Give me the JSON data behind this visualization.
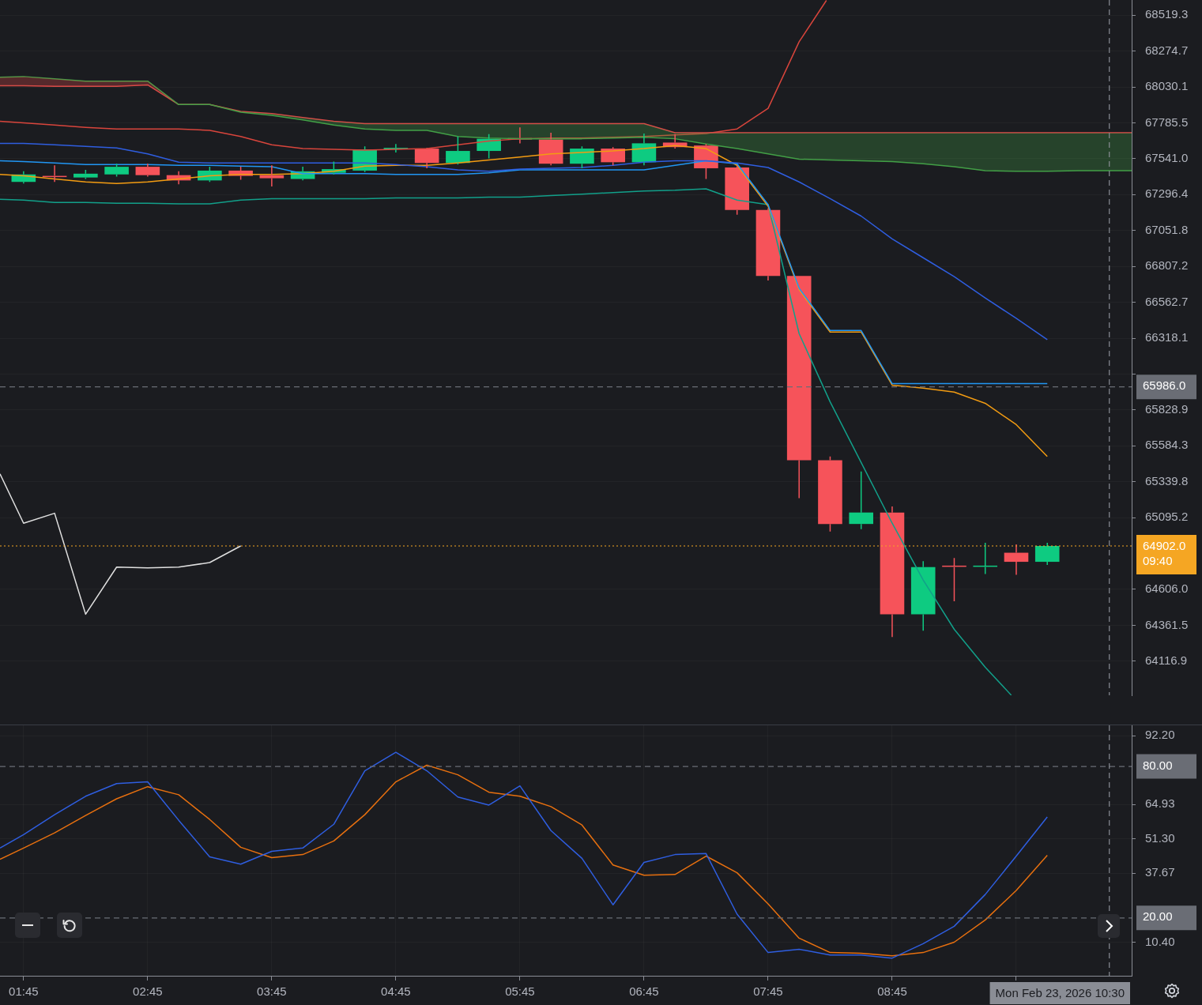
{
  "chart_data": [
    {
      "type": "candlestick",
      "tick_labels": "y",
      "grid": true,
      "xlim": [
        1.56,
        10.68
      ],
      "ylim": [
        63884.5,
        68622.6
      ],
      "yticks": [
        68519.3,
        68274.7,
        68030.1,
        67785.5,
        {
          "value": 67541.0,
          "label": "67541.0"
        },
        67296.4,
        67051.8,
        66807.2,
        66562.7,
        66318.1,
        {
          "value": 66073.5,
          "label": null
        },
        65828.9,
        65584.3,
        65339.8,
        65095.2,
        {
          "value": 64606.0,
          "label": "64606.0"
        },
        64361.5,
        64116.9
      ],
      "x": [
        1.75,
        2.0,
        2.25,
        2.5,
        2.75,
        3.0,
        3.25,
        3.5,
        3.75,
        4.0,
        4.25,
        4.5,
        4.75,
        5.0,
        5.25,
        5.5,
        5.75,
        6.0,
        6.25,
        6.5,
        6.75,
        7.0,
        7.25,
        7.5,
        7.75,
        8.0,
        8.25,
        8.5,
        8.75,
        9.0,
        9.25,
        9.5,
        9.75,
        10.0
      ],
      "ohlc": [
        [
          67383,
          67455,
          67372,
          67434
        ],
        [
          67424,
          67496,
          67383,
          67419
        ],
        [
          67413,
          67465,
          67403,
          67439
        ],
        [
          67434,
          67507,
          67419,
          67486
        ],
        [
          67486,
          67507,
          67419,
          67429
        ],
        [
          67429,
          67455,
          67367,
          67393
        ],
        [
          67393,
          67486,
          67383,
          67460
        ],
        [
          67460,
          67486,
          67398,
          67424
        ],
        [
          67429,
          67496,
          67352,
          67408
        ],
        [
          67403,
          67486,
          67393,
          67455
        ],
        [
          67445,
          67522,
          67434,
          67470
        ],
        [
          67460,
          67625,
          67450,
          67605
        ],
        [
          67605,
          67641,
          67584,
          67615
        ],
        [
          67610,
          67615,
          67476,
          67512
        ],
        [
          67512,
          67693,
          67501,
          67594
        ],
        [
          67594,
          67709,
          67543,
          67677
        ],
        [
          67682,
          67755,
          67646,
          67672
        ],
        [
          67672,
          67718,
          67496,
          67507
        ],
        [
          67507,
          67625,
          67476,
          67610
        ],
        [
          67610,
          67620,
          67496,
          67517
        ],
        [
          67517,
          67713,
          67496,
          67646
        ],
        [
          67651,
          67709,
          67610,
          67620
        ],
        [
          67631,
          67641,
          67403,
          67476
        ],
        [
          67481,
          67491,
          67160,
          67192
        ],
        [
          67192,
          67202,
          66711,
          66742
        ],
        [
          66742,
          66742,
          65228,
          65486
        ],
        [
          65486,
          65512,
          65000,
          65052
        ],
        [
          65052,
          65409,
          65016,
          65130
        ],
        [
          65130,
          65171,
          64282,
          64436
        ],
        [
          64436,
          64799,
          64324,
          64758
        ],
        [
          64768,
          64820,
          64525,
          64763
        ],
        [
          64763,
          64923,
          64711,
          64768
        ],
        [
          64856,
          64913,
          64706,
          64794
        ],
        [
          64794,
          64923,
          64773,
          64902
        ]
      ],
      "colors": [
        "#0ecb81",
        "#f6535a",
        "#0ecb81",
        "#0ecb81",
        "#f6535a",
        "#f6535a",
        "#0ecb81",
        "#f6535a",
        "#f6535a",
        "#0ecb81",
        "#0ecb81",
        "#0ecb81",
        "#0ecb81",
        "#f6535a",
        "#0ecb81",
        "#0ecb81",
        "#f6535a",
        "#f6535a",
        "#0ecb81",
        "#f6535a",
        "#0ecb81",
        "#f6535a",
        "#f6535a",
        "#f6535a",
        "#f6535a",
        "#f6535a",
        "#f6535a",
        "#0ecb81",
        "#f6535a",
        "#0ecb81",
        "#f6535a",
        "#0ecb81",
        "#f6535a",
        "#0ecb81"
      ],
      "series": [
        {
          "type": "line",
          "color": "#43a047",
          "x": [
            1.56,
            1.75,
            2.0,
            2.25,
            2.5,
            2.75,
            3.0,
            3.25,
            3.5,
            3.75,
            4.0,
            4.25,
            4.5,
            4.75,
            5.0,
            5.25,
            5.5,
            5.75,
            6.0,
            6.25,
            6.5,
            6.75,
            7.0,
            7.25,
            7.5,
            7.75,
            8.0,
            8.25,
            8.5,
            8.75,
            9.0,
            9.25,
            9.5,
            9.75,
            10.0,
            10.25,
            10.5,
            10.68
          ],
          "values": [
            68096,
            68101,
            68085,
            68070,
            68070,
            68070,
            67910,
            67910,
            67858,
            67837,
            67806,
            67770,
            67744,
            67734,
            67734,
            67693,
            67682,
            67677,
            67677,
            67677,
            67682,
            67687,
            67677,
            67641,
            67610,
            67574,
            67538,
            67532,
            67527,
            67522,
            67507,
            67486,
            67460,
            67455,
            67455,
            67460,
            67460,
            67460
          ],
          "upper": [
            68096,
            68101,
            68085,
            68070,
            68070,
            68070,
            67910,
            67910,
            67858,
            67837,
            67806,
            67770,
            67744,
            67734,
            67734,
            67693,
            67682,
            67677,
            67677,
            67677,
            67682,
            67687,
            67677,
            67641,
            67610,
            67574,
            67538,
            67532,
            67527,
            67522,
            67507,
            67486,
            67460,
            67455,
            67455,
            67460,
            67460,
            67460
          ],
          "lower": [
            68039,
            68039,
            68034,
            68034,
            68034,
            68044,
            67910,
            67910,
            67863,
            67848,
            67822,
            67796,
            67780,
            67780,
            67780,
            67780,
            67780,
            67780,
            67780,
            67780,
            67780,
            67780,
            67718,
            67718,
            67718,
            67718,
            67718,
            67718,
            67718,
            67718,
            67718,
            67718,
            67718,
            67718,
            67718,
            67718,
            67718,
            67718
          ]
        },
        {
          "type": "line",
          "color": "#e04848",
          "x": [
            1.56,
            1.75,
            2.0,
            2.25,
            2.5,
            2.75,
            3.0,
            3.25,
            3.5,
            3.75,
            4.0,
            4.25,
            4.5,
            4.75,
            5.0,
            5.25,
            5.5,
            5.75,
            6.0,
            6.25,
            6.5,
            6.75,
            7.0,
            7.25,
            7.5,
            7.75,
            8.0,
            8.25,
            8.5,
            8.75,
            9.0,
            9.25,
            9.5,
            9.75,
            10.0,
            10.25,
            10.5,
            10.68
          ],
          "values": [
            68039,
            68039,
            68034,
            68034,
            68034,
            68044,
            67910,
            67910,
            67863,
            67848,
            67822,
            67796,
            67780,
            67780,
            67780,
            67780,
            67780,
            67780,
            67780,
            67780,
            67780,
            67780,
            67718,
            67718,
            67718,
            67718,
            67718,
            67718,
            67718,
            67718,
            67718,
            67718,
            67718,
            67718,
            67718,
            67718,
            67718,
            67718
          ]
        },
        {
          "type": "line",
          "color": "#d9453c",
          "x": [
            1.56,
            1.75,
            2.0,
            2.25,
            2.5,
            2.75,
            3.0,
            3.25,
            3.5,
            3.75,
            4.0,
            4.25,
            4.5,
            4.75,
            5.0,
            5.25,
            5.5,
            5.75,
            6.0,
            6.25,
            6.5,
            6.75,
            7.0,
            7.25,
            7.5,
            7.75,
            8.0,
            8.22
          ],
          "values": [
            67796,
            67786,
            67770,
            67755,
            67744,
            67744,
            67744,
            67734,
            67693,
            67636,
            67610,
            67605,
            67600,
            67605,
            67610,
            67636,
            67662,
            67677,
            67682,
            67682,
            67687,
            67693,
            67703,
            67713,
            67744,
            67884,
            68338,
            68620
          ]
        },
        {
          "type": "line",
          "color": "#2f5ee0",
          "x": [
            1.56,
            1.75,
            2.0,
            2.25,
            2.5,
            2.75,
            3.0,
            3.25,
            3.5,
            3.75,
            4.0,
            4.25,
            4.5,
            4.75,
            5.0,
            5.25,
            5.5,
            5.75,
            6.0,
            6.25,
            6.5,
            6.75,
            7.0,
            7.25,
            7.5,
            7.75,
            8.0,
            8.25,
            8.5,
            8.75,
            9.0,
            9.25,
            9.5,
            9.75,
            10.0
          ],
          "values": [
            67646,
            67646,
            67636,
            67625,
            67615,
            67574,
            67517,
            67512,
            67512,
            67512,
            67512,
            67512,
            67512,
            67501,
            67486,
            67465,
            67455,
            67470,
            67476,
            67481,
            67496,
            67517,
            67527,
            67527,
            67512,
            67481,
            67383,
            67269,
            67150,
            66995,
            66866,
            66737,
            66592,
            66453,
            66308
          ]
        },
        {
          "type": "line",
          "color": "#2196f3",
          "x": [
            1.56,
            1.75,
            2.0,
            2.25,
            2.5,
            2.75,
            3.0,
            3.25,
            3.5,
            3.75,
            4.0,
            4.25,
            4.5,
            4.75,
            5.0,
            5.25,
            5.5,
            5.75,
            6.0,
            6.25,
            6.5,
            6.75,
            7.0,
            7.25,
            7.5,
            7.75,
            8.0,
            8.25,
            8.5,
            8.75,
            9.0,
            9.25,
            9.5,
            9.75,
            10.0
          ],
          "values": [
            67527,
            67522,
            67512,
            67501,
            67501,
            67501,
            67496,
            67496,
            67491,
            67486,
            67439,
            67439,
            67439,
            67434,
            67434,
            67434,
            67445,
            67465,
            67465,
            67465,
            67465,
            67465,
            67496,
            67527,
            67507,
            67228,
            66659,
            66370,
            66370,
            66008,
            66008,
            66008,
            66008,
            66008,
            66008
          ]
        },
        {
          "type": "line",
          "color": "#f39c12",
          "x": [
            1.56,
            1.75,
            2.0,
            2.25,
            2.5,
            2.75,
            3.0,
            3.25,
            3.5,
            3.75,
            4.0,
            4.25,
            4.5,
            4.75,
            5.0,
            5.25,
            5.5,
            5.75,
            6.0,
            6.25,
            6.5,
            6.75,
            7.0,
            7.25,
            7.5,
            7.75,
            8.0,
            8.25,
            8.5,
            8.75,
            9.0,
            9.25,
            9.5,
            9.75,
            10.0
          ],
          "values": [
            67434,
            67424,
            67403,
            67383,
            67372,
            67383,
            67403,
            67424,
            67434,
            67434,
            67439,
            67455,
            67491,
            67496,
            67496,
            67512,
            67532,
            67553,
            67574,
            67584,
            67594,
            67610,
            67631,
            67610,
            67496,
            67217,
            66649,
            66360,
            66360,
            65998,
            65977,
            65951,
            65874,
            65729,
            65512
          ]
        },
        {
          "type": "line",
          "color": "#12a08a",
          "x": [
            1.56,
            1.75,
            2.0,
            2.25,
            2.5,
            2.75,
            3.0,
            3.25,
            3.5,
            3.75,
            4.0,
            4.25,
            4.5,
            4.75,
            5.0,
            5.25,
            5.5,
            5.75,
            6.0,
            6.25,
            6.5,
            6.75,
            7.0,
            7.25,
            7.5,
            7.75,
            8.0,
            8.25,
            8.5,
            8.75,
            9.0,
            9.25,
            9.5,
            9.71
          ],
          "values": [
            67264,
            67259,
            67243,
            67243,
            67238,
            67238,
            67233,
            67233,
            67259,
            67269,
            67269,
            67269,
            67269,
            67274,
            67274,
            67274,
            67279,
            67279,
            67290,
            67300,
            67310,
            67321,
            67326,
            67336,
            67259,
            67228,
            66349,
            65884,
            65471,
            65057,
            64670,
            64334,
            64076,
            63885
          ]
        },
        {
          "type": "line",
          "color": "#e0e0e0",
          "x": [
            1.56,
            1.75,
            2.0,
            2.25,
            2.5,
            2.75,
            3.0,
            3.25,
            3.5
          ],
          "values": [
            65393,
            65057,
            65125,
            64437,
            64758,
            64753,
            64758,
            64789,
            64902
          ]
        }
      ],
      "ref_lines": [
        {
          "axis": "y",
          "value": 65986.0,
          "label": "65986.0",
          "color": "#6a6d75",
          "line_style": "dashed"
        },
        {
          "axis": "y",
          "value": 64902.0,
          "label": "64902.0\n09:40",
          "color": "#f5a623",
          "line_style": "dotted"
        },
        {
          "axis": "x",
          "value": 10.5,
          "color": "#8a8d95",
          "line_style": "dashed"
        }
      ]
    },
    {
      "type": "line",
      "grid": true,
      "xlim": [
        1.56,
        10.68
      ],
      "ylim": [
        -2.9,
        96.3
      ],
      "xticks": [
        {
          "value": 1.75,
          "label": "01:45"
        },
        {
          "value": 2.75,
          "label": "02:45"
        },
        {
          "value": 3.75,
          "label": "03:45"
        },
        {
          "value": 4.75,
          "label": "04:45"
        },
        {
          "value": 5.75,
          "label": "05:45"
        },
        {
          "value": 6.75,
          "label": "06:45"
        },
        {
          "value": 7.75,
          "label": "07:45"
        },
        {
          "value": 8.75,
          "label": "08:45"
        },
        {
          "value": 9.75,
          "label": null
        }
      ],
      "yticks": [
        {
          "value": 92.2,
          "label": "92.20"
        },
        64.93,
        {
          "value": 51.3,
          "label": "51.30"
        },
        37.67,
        {
          "value": 10.4,
          "label": "10.40"
        }
      ],
      "x": [
        1.56,
        1.75,
        2.0,
        2.25,
        2.5,
        2.75,
        3.0,
        3.25,
        3.5,
        3.75,
        4.0,
        4.25,
        4.5,
        4.75,
        5.0,
        5.25,
        5.5,
        5.75,
        6.0,
        6.25,
        6.5,
        6.75,
        7.0,
        7.25,
        7.5,
        7.75,
        8.0,
        8.25,
        8.5,
        8.75,
        9.0,
        9.25,
        9.5,
        9.75,
        10.0
      ],
      "series": [
        {
          "color": "#2f5ee0",
          "values": [
            47.7,
            53.0,
            60.9,
            68.2,
            73.2,
            73.9,
            58.7,
            44.2,
            41.3,
            46.4,
            47.7,
            57.1,
            78.3,
            85.6,
            78.3,
            67.9,
            64.7,
            72.3,
            54.6,
            43.6,
            25.2,
            42.0,
            45.1,
            45.5,
            21.5,
            6.3,
            7.6,
            5.3,
            5.3,
            4.1,
            9.8,
            16.7,
            29.3,
            44.5,
            60.0
          ]
        },
        {
          "color": "#e8700f",
          "values": [
            43.2,
            47.7,
            53.7,
            60.6,
            67.2,
            72.0,
            68.8,
            59.0,
            48.0,
            43.9,
            45.1,
            50.5,
            60.9,
            73.9,
            80.5,
            76.7,
            69.8,
            68.2,
            64.1,
            56.8,
            41.0,
            36.9,
            37.2,
            44.5,
            37.9,
            25.6,
            12.0,
            6.3,
            6.0,
            5.0,
            6.3,
            10.4,
            19.2,
            30.9,
            44.8
          ]
        }
      ],
      "ref_lines": [
        {
          "axis": "y",
          "value": 80,
          "label": "80.00",
          "color": "#6a6d75",
          "line_style": "dashed"
        },
        {
          "axis": "y",
          "value": 20,
          "label": "20.00",
          "color": "#6a6d75",
          "line_style": "dashed"
        },
        {
          "axis": "x",
          "value": 10.5,
          "label": "Mon Feb 23, 2026 10:30",
          "color": "#8a8d95",
          "line_style": "dashed"
        }
      ]
    }
  ]
}
